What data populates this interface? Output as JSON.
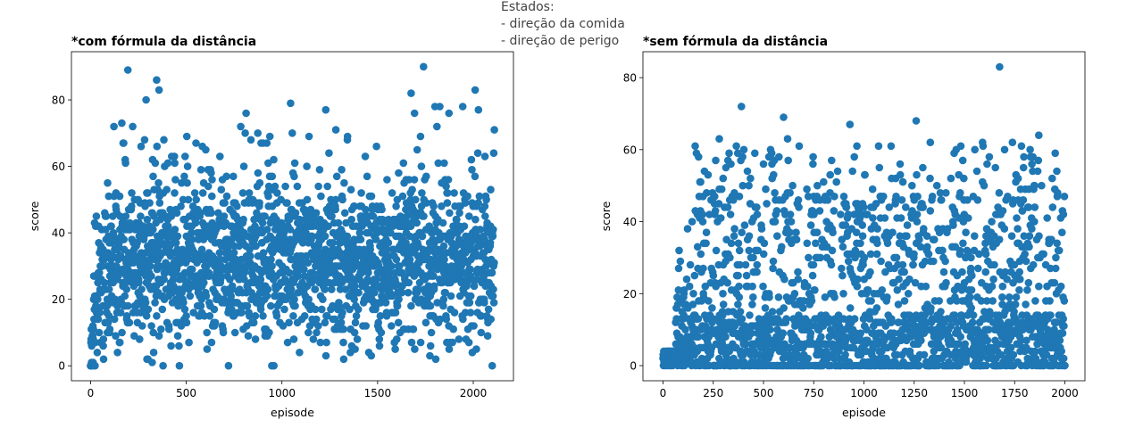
{
  "suptitle_lines": [
    "Estados:",
    "- direção da comida",
    "- direção de perigo"
  ],
  "point_color": "#1f77b4",
  "chart_data": [
    {
      "type": "scatter",
      "title": "*com fórmula da distância",
      "xlabel": "episode",
      "ylabel": "score",
      "xlim": [
        -100,
        2210
      ],
      "ylim": [
        -4.5,
        94.5
      ],
      "xticks": [
        0,
        500,
        1000,
        1500,
        2000
      ],
      "yticks": [
        0,
        20,
        40,
        60,
        80
      ],
      "n_points": 2110,
      "notable_points": [
        {
          "x": 195,
          "y": 89
        },
        {
          "x": 345,
          "y": 86
        },
        {
          "x": 358,
          "y": 83
        },
        {
          "x": 290,
          "y": 80
        },
        {
          "x": 1045,
          "y": 79
        },
        {
          "x": 1740,
          "y": 90
        },
        {
          "x": 1675,
          "y": 82
        },
        {
          "x": 2010,
          "y": 83
        },
        {
          "x": 1800,
          "y": 78
        },
        {
          "x": 2110,
          "y": 71
        }
      ],
      "score_band_typical": [
        10,
        55
      ]
    },
    {
      "type": "scatter",
      "title": "*sem fórmula da distância",
      "xlabel": "episode",
      "ylabel": "score",
      "xlim": [
        -100,
        2100
      ],
      "ylim": [
        -4.2,
        87.2
      ],
      "xticks": [
        0,
        250,
        500,
        750,
        1000,
        1250,
        1500,
        1750,
        2000
      ],
      "yticks": [
        0,
        20,
        40,
        60,
        80
      ],
      "n_points": 2001,
      "notable_points": [
        {
          "x": 1675,
          "y": 83
        },
        {
          "x": 390,
          "y": 72
        },
        {
          "x": 600,
          "y": 69
        },
        {
          "x": 1260,
          "y": 68
        },
        {
          "x": 930,
          "y": 67
        },
        {
          "x": 1870,
          "y": 64
        },
        {
          "x": 280,
          "y": 63
        },
        {
          "x": 620,
          "y": 63
        },
        {
          "x": 1330,
          "y": 62
        },
        {
          "x": 1590,
          "y": 62
        }
      ],
      "score_band_typical": [
        0,
        50
      ]
    }
  ]
}
